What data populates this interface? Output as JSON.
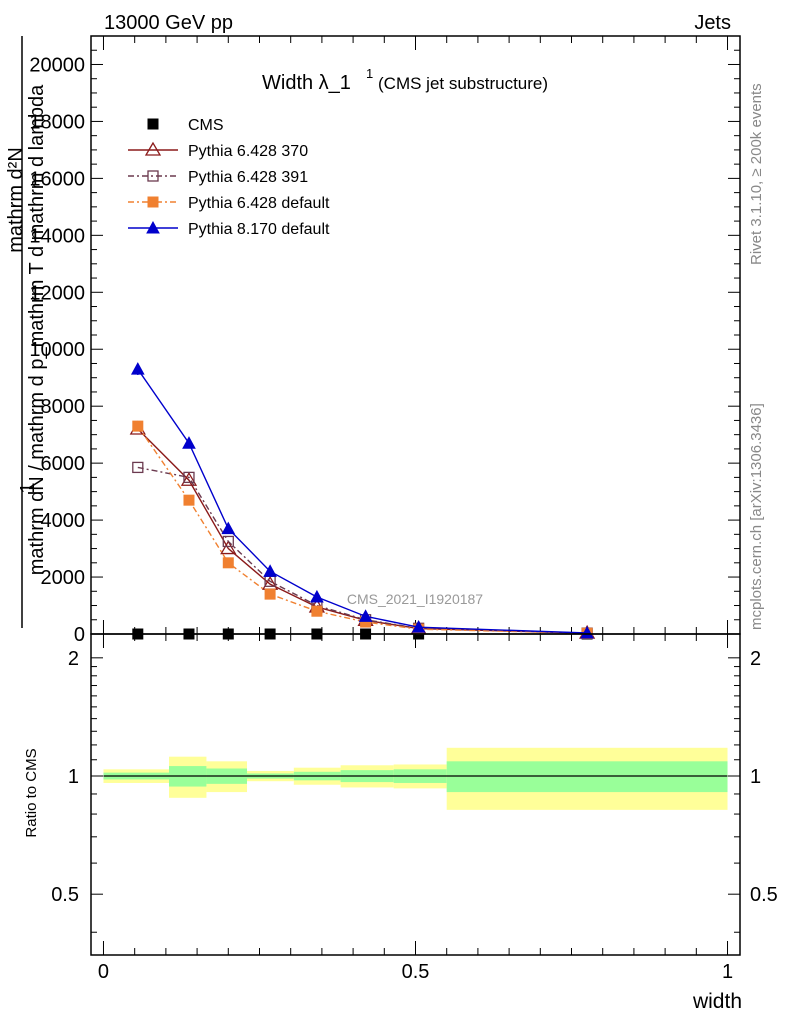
{
  "header": {
    "left": "13000 GeV pp",
    "right": "Jets"
  },
  "side_labels": {
    "rivet": "Rivet 3.1.10, ≥ 200k events",
    "mcplots": "mcplots.cern.ch [arXiv:1306.3436]"
  },
  "colors": {
    "cms": "#000000",
    "p370": "#8b1a1a",
    "p391": "#6b3a4f",
    "p6def": "#f08030",
    "p8def": "#0000cc",
    "band_inner": "#99ff99",
    "band_outer": "#ffff99"
  },
  "chart_data": [
    {
      "type": "line",
      "title": "Width λ_1¹ (CMS jet substructure)",
      "title_main": "Width λ_1",
      "title_sup": "1",
      "title_sub": "(CMS jet substructure)",
      "ylabel_lines": [
        "1",
        "mathrm dN / mathrm d p_mathrm T d mathrm d lambda",
        "mathrm d²N"
      ],
      "analysis_label": "CMS_2021_I1920187",
      "xlim": [
        -0.02,
        1.02
      ],
      "ylim": [
        0,
        21000
      ],
      "yticks": [
        0,
        2000,
        4000,
        6000,
        8000,
        10000,
        12000,
        14000,
        16000,
        18000,
        20000
      ],
      "ytick_labels": [
        "0",
        "2000",
        "4000",
        "6000",
        "8000",
        "10000",
        "12000",
        "14000",
        "16000",
        "18000",
        "20000"
      ],
      "x": [
        0.055,
        0.137,
        0.2,
        0.267,
        0.342,
        0.42,
        0.505,
        0.775
      ],
      "series": [
        {
          "name": "CMS",
          "key": "cms",
          "marker": "square",
          "values": [
            0,
            0,
            0,
            0,
            0,
            0,
            0,
            0
          ]
        },
        {
          "name": "Pythia 6.428 370",
          "key": "p370",
          "marker": "triangle-open",
          "dash": "",
          "values": [
            7200,
            5400,
            3000,
            1750,
            950,
            480,
            190,
            30
          ]
        },
        {
          "name": "Pythia 6.428 391",
          "key": "p391",
          "marker": "square-open",
          "dash": "6,3,2,3",
          "values": [
            5850,
            5500,
            3250,
            1850,
            1000,
            500,
            200,
            30
          ]
        },
        {
          "name": "Pythia 6.428 default",
          "key": "p6def",
          "marker": "square",
          "dash": "6,3,2,3",
          "values": [
            7300,
            4700,
            2500,
            1400,
            800,
            420,
            170,
            25
          ]
        },
        {
          "name": "Pythia 8.170 default",
          "key": "p8def",
          "marker": "triangle",
          "dash": "",
          "values": [
            9300,
            6700,
            3700,
            2200,
            1300,
            620,
            240,
            35
          ]
        }
      ]
    },
    {
      "type": "area",
      "ylabel": "Ratio to CMS",
      "xlabel": "width",
      "xlim": [
        -0.02,
        1.02
      ],
      "ylim": [
        0.35,
        2.3
      ],
      "yticks": [
        0.5,
        1,
        2
      ],
      "ytick_labels": [
        "0.5",
        "1",
        "2"
      ],
      "xticks": [
        0,
        0.5,
        1
      ],
      "xtick_labels": [
        "0",
        "0.5",
        "1"
      ],
      "bins": [
        {
          "lo": 0.0,
          "hi": 0.105,
          "inner": [
            0.98,
            1.02
          ],
          "outer": [
            0.96,
            1.04
          ]
        },
        {
          "lo": 0.105,
          "hi": 0.165,
          "inner": [
            0.94,
            1.06
          ],
          "outer": [
            0.88,
            1.12
          ]
        },
        {
          "lo": 0.165,
          "hi": 0.23,
          "inner": [
            0.955,
            1.045
          ],
          "outer": [
            0.91,
            1.09
          ]
        },
        {
          "lo": 0.23,
          "hi": 0.305,
          "inner": [
            0.985,
            1.015
          ],
          "outer": [
            0.97,
            1.03
          ]
        },
        {
          "lo": 0.305,
          "hi": 0.38,
          "inner": [
            0.975,
            1.025
          ],
          "outer": [
            0.95,
            1.05
          ]
        },
        {
          "lo": 0.38,
          "hi": 0.465,
          "inner": [
            0.965,
            1.035
          ],
          "outer": [
            0.935,
            1.065
          ]
        },
        {
          "lo": 0.465,
          "hi": 0.55,
          "inner": [
            0.96,
            1.04
          ],
          "outer": [
            0.93,
            1.07
          ]
        },
        {
          "lo": 0.55,
          "hi": 1.0,
          "inner": [
            0.91,
            1.09
          ],
          "outer": [
            0.82,
            1.18
          ]
        }
      ]
    }
  ]
}
